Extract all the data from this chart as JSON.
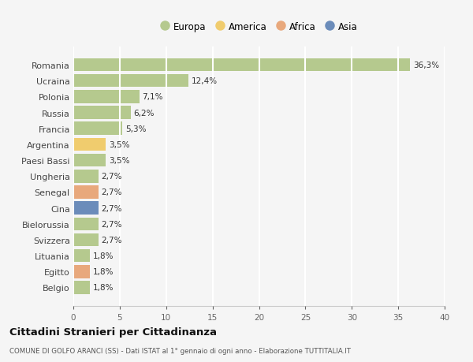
{
  "countries": [
    "Romania",
    "Ucraina",
    "Polonia",
    "Russia",
    "Francia",
    "Argentina",
    "Paesi Bassi",
    "Ungheria",
    "Senegal",
    "Cina",
    "Bielorussia",
    "Svizzera",
    "Lituania",
    "Egitto",
    "Belgio"
  ],
  "values": [
    36.3,
    12.4,
    7.1,
    6.2,
    5.3,
    3.5,
    3.5,
    2.7,
    2.7,
    2.7,
    2.7,
    2.7,
    1.8,
    1.8,
    1.8
  ],
  "labels": [
    "36,3%",
    "12,4%",
    "7,1%",
    "6,2%",
    "5,3%",
    "3,5%",
    "3,5%",
    "2,7%",
    "2,7%",
    "2,7%",
    "2,7%",
    "2,7%",
    "1,8%",
    "1,8%",
    "1,8%"
  ],
  "continents": [
    "Europa",
    "Europa",
    "Europa",
    "Europa",
    "Europa",
    "America",
    "Europa",
    "Europa",
    "Africa",
    "Asia",
    "Europa",
    "Europa",
    "Europa",
    "Africa",
    "Europa"
  ],
  "continent_colors": {
    "Europa": "#b5c98e",
    "America": "#f0cc6e",
    "Africa": "#e8a87c",
    "Asia": "#6b8cba"
  },
  "legend_items": [
    "Europa",
    "America",
    "Africa",
    "Asia"
  ],
  "legend_colors": [
    "#b5c98e",
    "#f0cc6e",
    "#e8a87c",
    "#6b8cba"
  ],
  "title": "Cittadini Stranieri per Cittadinanza",
  "subtitle": "COMUNE DI GOLFO ARANCI (SS) - Dati ISTAT al 1° gennaio di ogni anno - Elaborazione TUTTITALIA.IT",
  "xlim": [
    0,
    40
  ],
  "xticks": [
    0,
    5,
    10,
    15,
    20,
    25,
    30,
    35,
    40
  ],
  "background_color": "#f5f5f5",
  "grid_color": "#ffffff",
  "bar_height": 0.82
}
